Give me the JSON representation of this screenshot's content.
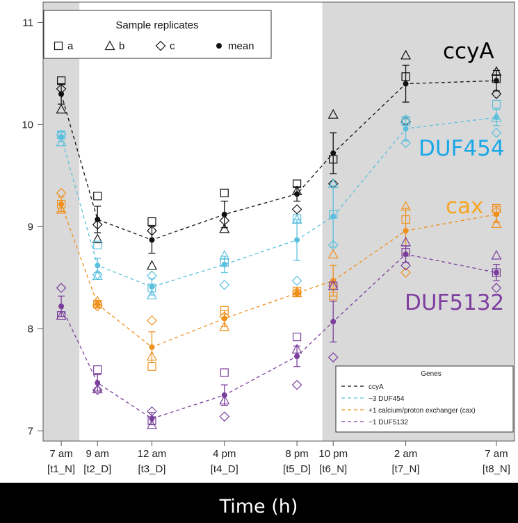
{
  "chart_data": {
    "type": "line",
    "xlabel": "Time (h)",
    "categories": [
      {
        "top": "7 am",
        "bottom": "[t1_N]",
        "hour": 7
      },
      {
        "top": "9 am",
        "bottom": "[t2_D]",
        "hour": 9
      },
      {
        "top": "12 am",
        "bottom": "[t3_D]",
        "hour": 12
      },
      {
        "top": "4 pm",
        "bottom": "[t4_D]",
        "hour": 16
      },
      {
        "top": "8 pm",
        "bottom": "[t5_D]",
        "hour": 20
      },
      {
        "top": "10 pm",
        "bottom": "[t6_N]",
        "hour": 22
      },
      {
        "top": "2 am",
        "bottom": "[t7_N]",
        "hour": 26
      },
      {
        "top": "7 am",
        "bottom": "[t8_N]",
        "hour": 31
      }
    ],
    "yticks": [
      7,
      8,
      9,
      10,
      11
    ],
    "ylim": [
      6.9,
      11.2
    ],
    "xlim": [
      6,
      32
    ],
    "night_shading": [
      [
        6,
        8
      ],
      [
        21.4,
        32
      ]
    ],
    "replicate_legend": {
      "title": "Sample replicates",
      "entries": [
        {
          "symbol": "square",
          "label": "a"
        },
        {
          "symbol": "triangle",
          "label": "b"
        },
        {
          "symbol": "diamond",
          "label": "c"
        },
        {
          "symbol": "dot",
          "label": "mean"
        }
      ]
    },
    "gene_legend": {
      "title": "Genes",
      "entries": [
        "ccyA",
        "−3 DUF454",
        "+1 calcium/proton exchanger (cax)",
        "−1 DUF5132"
      ]
    },
    "series": [
      {
        "name": "ccyA",
        "color": "#111111",
        "tag": "ccyA",
        "tag_color": "#000000",
        "mean": [
          10.3,
          9.07,
          8.87,
          9.12,
          9.32,
          9.72,
          10.4,
          10.43
        ],
        "err": [
          0.1,
          0.13,
          0.13,
          0.13,
          0.07,
          0.2,
          0.18,
          0.1
        ],
        "a": [
          10.43,
          9.3,
          9.05,
          9.33,
          9.42,
          9.66,
          10.47,
          10.45
        ],
        "b": [
          10.15,
          8.88,
          8.62,
          8.98,
          9.35,
          10.1,
          10.68,
          10.52
        ],
        "c": [
          10.35,
          9.02,
          8.96,
          9.06,
          9.17,
          9.42,
          10.03,
          10.3
        ]
      },
      {
        "name": "−3 DUF454",
        "color": "#5bc0de",
        "tag": "DUF454",
        "tag_color": "#1aa7e8",
        "mean": [
          9.88,
          8.62,
          8.41,
          8.63,
          8.87,
          9.1,
          9.96,
          10.07
        ],
        "err": [
          0.05,
          0.07,
          0.08,
          0.08,
          0.2,
          0.3,
          0.12,
          0.08
        ],
        "a": [
          9.9,
          8.82,
          8.4,
          8.65,
          9.08,
          9.12,
          10.03,
          10.2
        ],
        "b": [
          9.83,
          8.52,
          8.33,
          8.72,
          9.07,
          9.42,
          10.05,
          10.07
        ],
        "c": [
          9.9,
          8.53,
          8.52,
          8.43,
          8.47,
          8.82,
          9.82,
          9.92
        ]
      },
      {
        "name": "+1 calcium/proton exchanger (cax)",
        "color": "#f0901c",
        "tag": "cax",
        "tag_color": "#f5a623",
        "mean": [
          9.22,
          8.24,
          7.82,
          8.1,
          8.35,
          8.47,
          8.96,
          9.12
        ],
        "err": [
          0.07,
          0.03,
          0.15,
          0.08,
          0.03,
          0.15,
          0.22,
          0.08
        ],
        "a": [
          9.22,
          8.24,
          7.63,
          8.18,
          8.37,
          8.32,
          9.07,
          9.18
        ],
        "b": [
          9.17,
          8.27,
          7.73,
          8.02,
          8.35,
          8.73,
          9.2,
          9.03
        ],
        "c": [
          9.33,
          8.22,
          8.08,
          8.12,
          8.36,
          8.42,
          8.55,
          9.15
        ]
      },
      {
        "name": "−1 DUF5132",
        "color": "#7a3f9d",
        "tag": "DUF5132",
        "tag_color": "#7f3fa0",
        "mean": [
          8.22,
          7.47,
          7.12,
          7.35,
          7.73,
          8.07,
          8.73,
          8.55
        ],
        "err": [
          0.1,
          0.08,
          0.06,
          0.1,
          0.1,
          0.2,
          0.08,
          0.08
        ],
        "a": [
          8.13,
          7.6,
          7.1,
          7.57,
          7.92,
          8.42,
          8.75,
          8.55
        ],
        "b": [
          8.13,
          7.41,
          7.06,
          7.3,
          7.8,
          8.42,
          8.85,
          8.72
        ],
        "c": [
          8.4,
          7.4,
          7.19,
          7.14,
          7.45,
          7.72,
          8.62,
          8.4
        ]
      }
    ]
  }
}
